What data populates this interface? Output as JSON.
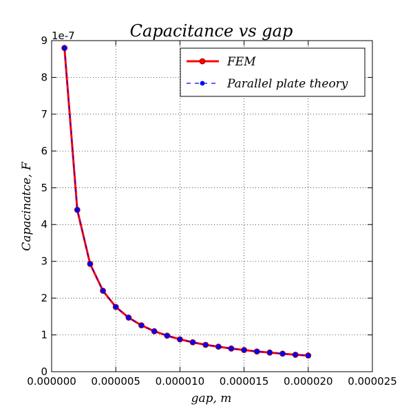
{
  "chart_data": {
    "type": "line",
    "title": "Capacitance vs gap",
    "xlabel": "gap, m",
    "ylabel": "Capacinatce, F",
    "y_offset_label": "1e-7",
    "xlim": [
      0,
      2.5e-05
    ],
    "ylim": [
      0,
      9
    ],
    "x_ticks": [
      0,
      5e-06,
      1e-05,
      1.5e-05,
      2e-05,
      2.5e-05
    ],
    "x_tick_labels": [
      "0.000000",
      "0.000005",
      "0.000010",
      "0.000015",
      "0.000020",
      "0.000025"
    ],
    "y_ticks": [
      0,
      1,
      2,
      3,
      4,
      5,
      6,
      7,
      8,
      9
    ],
    "y_tick_labels": [
      "0",
      "1",
      "2",
      "3",
      "4",
      "5",
      "6",
      "7",
      "8",
      "9"
    ],
    "grid": true,
    "legend_position": "top-right",
    "x": [
      1e-06,
      2e-06,
      3e-06,
      4e-06,
      5e-06,
      6e-06,
      7e-06,
      8e-06,
      9e-06,
      1e-05,
      1.1e-05,
      1.2e-05,
      1.3e-05,
      1.4e-05,
      1.5e-05,
      1.6e-05,
      1.7e-05,
      1.8e-05,
      1.9e-05,
      2e-05
    ],
    "series": [
      {
        "name": "FEM",
        "color": "#ff0000",
        "style": "solid",
        "marker": "circle",
        "values": [
          8.8,
          4.4,
          2.93,
          2.2,
          1.76,
          1.47,
          1.26,
          1.1,
          0.98,
          0.88,
          0.8,
          0.73,
          0.68,
          0.63,
          0.59,
          0.55,
          0.52,
          0.49,
          0.46,
          0.44
        ]
      },
      {
        "name": "Parallel plate theory",
        "color": "#0000ff",
        "style": "dashed",
        "marker": "circle",
        "values": [
          8.8,
          4.4,
          2.93,
          2.2,
          1.76,
          1.47,
          1.26,
          1.1,
          0.98,
          0.88,
          0.8,
          0.73,
          0.68,
          0.63,
          0.59,
          0.55,
          0.52,
          0.49,
          0.46,
          0.44
        ]
      }
    ]
  }
}
